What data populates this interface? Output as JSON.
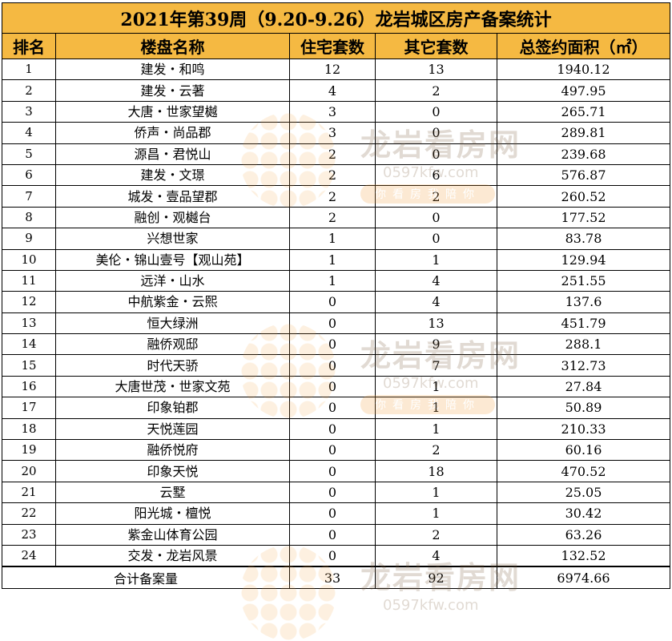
{
  "title": "2021年第39周（9.20-9.26）龙岩城区房产备案统计",
  "columns": {
    "rank": "排名",
    "name": "楼盘名称",
    "residential": "住宅套数",
    "other": "其它套数",
    "area": "总签约面积（㎡）"
  },
  "rows": [
    {
      "rank": "1",
      "name": "建发・和鸣",
      "residential": "12",
      "other": "13",
      "area": "1940.12"
    },
    {
      "rank": "2",
      "name": "建发・云著",
      "residential": "4",
      "other": "2",
      "area": "497.95"
    },
    {
      "rank": "3",
      "name": "大唐・世家望樾",
      "residential": "3",
      "other": "0",
      "area": "265.71"
    },
    {
      "rank": "4",
      "name": "侨声・尚品郡",
      "residential": "3",
      "other": "0",
      "area": "289.81"
    },
    {
      "rank": "5",
      "name": "源昌・君悦山",
      "residential": "2",
      "other": "0",
      "area": "239.68"
    },
    {
      "rank": "6",
      "name": "建发・文璟",
      "residential": "2",
      "other": "6",
      "area": "576.87"
    },
    {
      "rank": "7",
      "name": "城发・壹品望郡",
      "residential": "2",
      "other": "2",
      "area": "260.52"
    },
    {
      "rank": "8",
      "name": "融创・观樾台",
      "residential": "2",
      "other": "0",
      "area": "177.52"
    },
    {
      "rank": "9",
      "name": "兴想世家",
      "residential": "1",
      "other": "0",
      "area": "83.78"
    },
    {
      "rank": "10",
      "name": "美伦・锦山壹号【观山苑】",
      "residential": "1",
      "other": "1",
      "area": "129.94"
    },
    {
      "rank": "11",
      "name": "远洋・山水",
      "residential": "1",
      "other": "4",
      "area": "251.55"
    },
    {
      "rank": "12",
      "name": "中航紫金・云熙",
      "residential": "0",
      "other": "4",
      "area": "137.6"
    },
    {
      "rank": "13",
      "name": "恒大绿洲",
      "residential": "0",
      "other": "13",
      "area": "451.79"
    },
    {
      "rank": "14",
      "name": "融侨观邸",
      "residential": "0",
      "other": "9",
      "area": "288.1"
    },
    {
      "rank": "15",
      "name": "时代天骄",
      "residential": "0",
      "other": "7",
      "area": "312.73"
    },
    {
      "rank": "16",
      "name": "大唐世茂・世家文苑",
      "residential": "0",
      "other": "1",
      "area": "27.84"
    },
    {
      "rank": "17",
      "name": "印象铂郡",
      "residential": "0",
      "other": "1",
      "area": "50.89"
    },
    {
      "rank": "18",
      "name": "天悦莲园",
      "residential": "0",
      "other": "1",
      "area": "210.33"
    },
    {
      "rank": "19",
      "name": "融侨悦府",
      "residential": "0",
      "other": "2",
      "area": "60.16"
    },
    {
      "rank": "20",
      "name": "印象天悦",
      "residential": "0",
      "other": "18",
      "area": "470.52"
    },
    {
      "rank": "21",
      "name": "云墅",
      "residential": "0",
      "other": "1",
      "area": "25.05"
    },
    {
      "rank": "22",
      "name": "阳光城・檀悦",
      "residential": "0",
      "other": "1",
      "area": "30.42"
    },
    {
      "rank": "23",
      "name": "紫金山体育公园",
      "residential": "0",
      "other": "2",
      "area": "63.26"
    },
    {
      "rank": "24",
      "name": "交发・龙岩风景",
      "residential": "0",
      "other": "4",
      "area": "132.52"
    }
  ],
  "total": {
    "label": "合计备案量",
    "residential": "33",
    "other": "92",
    "area": "6974.66"
  },
  "watermark": {
    "brand": "龙岩看房网",
    "url": "0597kfw.com",
    "slogan": "你看房我陪你",
    "color": "#f2a03c"
  },
  "colors": {
    "header_bg": "#F5B942"
  }
}
